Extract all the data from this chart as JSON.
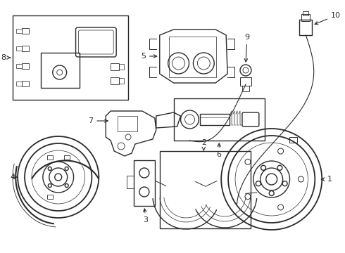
{
  "bg_color": "#ffffff",
  "line_color": "#2a2a2a",
  "lw_main": 1.0,
  "fig_width": 4.9,
  "fig_height": 3.6,
  "dpi": 100
}
